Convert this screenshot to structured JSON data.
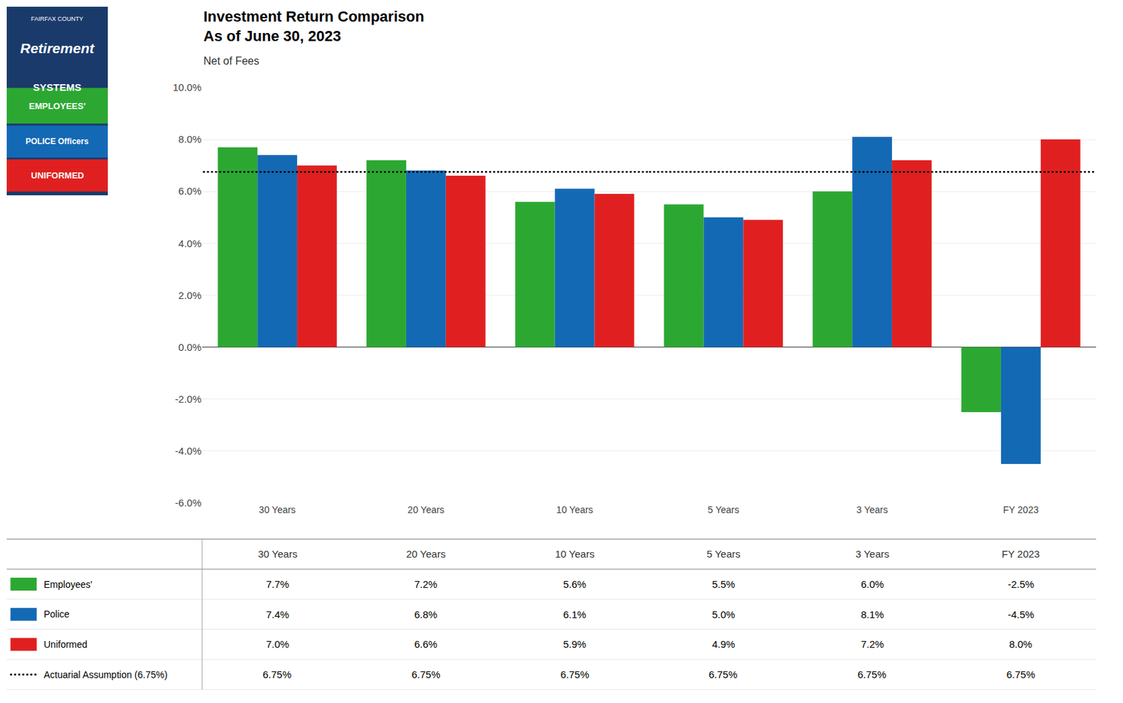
{
  "chart_data": {
    "type": "bar",
    "title": "Investment Return Comparison\nAs of June 30, 2023",
    "subtitle": "Net of Fees",
    "categories": [
      "30 Years",
      "20 Years",
      "10 Years",
      "5 Years",
      "3 Years",
      "FY 2023"
    ],
    "series": [
      {
        "name": "Employees'",
        "color": "#2ca832",
        "values": [
          7.7,
          7.2,
          5.6,
          5.5,
          6.0,
          -2.5
        ],
        "value_labels": [
          "7.7%",
          "7.2%",
          "5.6%",
          "5.5%",
          "6.0%",
          "-2.5%"
        ]
      },
      {
        "name": "Police",
        "color": "#1469b5",
        "values": [
          7.4,
          6.8,
          6.1,
          5.0,
          8.1,
          -4.5
        ],
        "value_labels": [
          "7.4%",
          "6.8%",
          "6.1%",
          "5.0%",
          "8.1%",
          "-4.5%"
        ]
      },
      {
        "name": "Uniformed",
        "color": "#e02020",
        "values": [
          7.0,
          6.6,
          5.9,
          4.9,
          7.2,
          8.0
        ],
        "value_labels": [
          "7.0%",
          "6.6%",
          "5.9%",
          "4.9%",
          "7.2%",
          "8.0%"
        ]
      },
      {
        "name": "Actuarial Assumption (6.75%)",
        "type": "line",
        "color": "#000000",
        "line_style": "dotted",
        "values": [
          6.75,
          6.75,
          6.75,
          6.75,
          6.75,
          6.75
        ],
        "value_labels": [
          "6.75%",
          "6.75%",
          "6.75%",
          "6.75%",
          "6.75%",
          "6.75%"
        ]
      }
    ],
    "ylim": [
      -6.0,
      10.0
    ],
    "yticks": [
      {
        "value": -6.0,
        "label": "-6.0%"
      },
      {
        "value": -4.0,
        "label": "-4.0%"
      },
      {
        "value": -2.0,
        "label": "-2.0%"
      },
      {
        "value": 0.0,
        "label": "0.0%"
      },
      {
        "value": 2.0,
        "label": "2.0%"
      },
      {
        "value": 4.0,
        "label": "4.0%"
      },
      {
        "value": 6.0,
        "label": "6.0%"
      },
      {
        "value": 8.0,
        "label": "8.0%"
      },
      {
        "value": 10.0,
        "label": "10.0%"
      }
    ],
    "grid": true,
    "annotations": [
      "FAIRFAX COUNTY",
      "Retirement",
      "SYSTEMS",
      "EMPLOYEES'",
      "POLICE Officers",
      "UNIFORMED"
    ]
  }
}
